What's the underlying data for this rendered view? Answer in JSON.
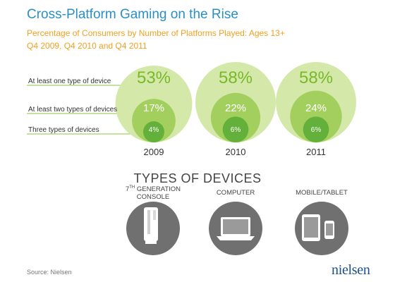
{
  "header": {
    "title": "Cross-Platform Gaming on the Rise",
    "subtitle_line1": "Percentage of Consumers by Number of Platforms Played: Ages 13+",
    "subtitle_line2": "Q4 2009, Q4 2010 and Q4 2011"
  },
  "chart_data": {
    "type": "bubble",
    "title": "Cross-Platform Gaming on the Rise",
    "categories": [
      "2009",
      "2010",
      "2011"
    ],
    "series": [
      {
        "name": "At least one type of device",
        "values": [
          53,
          58,
          58
        ],
        "labels": [
          "53%",
          "58%",
          "58%"
        ]
      },
      {
        "name": "At least two types of devices",
        "values": [
          17,
          22,
          24
        ],
        "labels": [
          "17%",
          "22%",
          "24%"
        ]
      },
      {
        "name": "Three types of devices",
        "values": [
          4,
          6,
          6
        ],
        "labels": [
          "4%",
          "6%",
          "6%"
        ]
      }
    ],
    "colors": [
      "#d4e9a9",
      "#a3cf5e",
      "#63b03a"
    ]
  },
  "devices": {
    "title": "TYPES OF DEVICES",
    "items": [
      {
        "label_prefix": "7",
        "label_sup": "TH",
        "label_rest": " GENERATION",
        "label_line2": "CONSOLE",
        "icon": "console-icon"
      },
      {
        "label_prefix": "COMPUTER",
        "label_sup": "",
        "label_rest": "",
        "label_line2": "",
        "icon": "laptop-icon"
      },
      {
        "label_prefix": "MOBILE/TABLET",
        "label_sup": "",
        "label_rest": "",
        "label_line2": "",
        "icon": "tablet-phone-icon"
      }
    ]
  },
  "footer": {
    "source": "Source: Nielsen",
    "logo": "nielsen"
  }
}
